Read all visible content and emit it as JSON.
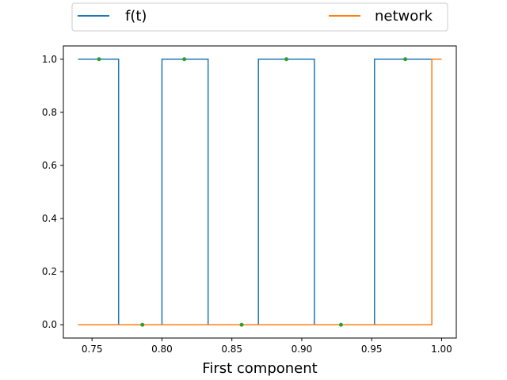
{
  "chart_data": {
    "type": "line",
    "title": "",
    "xlabel": "First component",
    "ylabel": "",
    "xlim": [
      0.7295,
      1.0105
    ],
    "ylim": [
      -0.05,
      1.05
    ],
    "xticks": [
      0.75,
      0.8,
      0.85,
      0.9,
      0.95,
      1.0
    ],
    "xtick_labels": [
      "0.75",
      "0.80",
      "0.85",
      "0.90",
      "0.95",
      "1.00"
    ],
    "yticks": [
      0.0,
      0.2,
      0.4,
      0.6,
      0.8,
      1.0
    ],
    "ytick_labels": [
      "0.0",
      "0.2",
      "0.4",
      "0.6",
      "0.8",
      "1.0"
    ],
    "grid": false,
    "legend_placement": "top, above plot",
    "series": [
      {
        "name": "f(t)",
        "color": "#1f77b4",
        "drawstyle": "steps",
        "x": [
          0.74,
          0.769,
          0.769,
          0.8,
          0.8,
          0.833,
          0.833,
          0.869,
          0.869,
          0.909,
          0.909,
          0.952,
          0.952,
          1.0
        ],
        "y": [
          1,
          1,
          0,
          0,
          1,
          1,
          0,
          0,
          1,
          1,
          0,
          0,
          1,
          1
        ]
      },
      {
        "name": "network",
        "color": "#ff7f0e",
        "drawstyle": "steps",
        "x": [
          0.74,
          0.993,
          0.993,
          1.0
        ],
        "y": [
          0,
          0,
          1,
          1
        ]
      }
    ],
    "markers": {
      "color": "#2ca02c",
      "points": [
        {
          "x": 0.755,
          "y": 1
        },
        {
          "x": 0.786,
          "y": 0
        },
        {
          "x": 0.816,
          "y": 1
        },
        {
          "x": 0.857,
          "y": 0
        },
        {
          "x": 0.889,
          "y": 1
        },
        {
          "x": 0.928,
          "y": 0
        },
        {
          "x": 0.974,
          "y": 1
        }
      ]
    }
  }
}
